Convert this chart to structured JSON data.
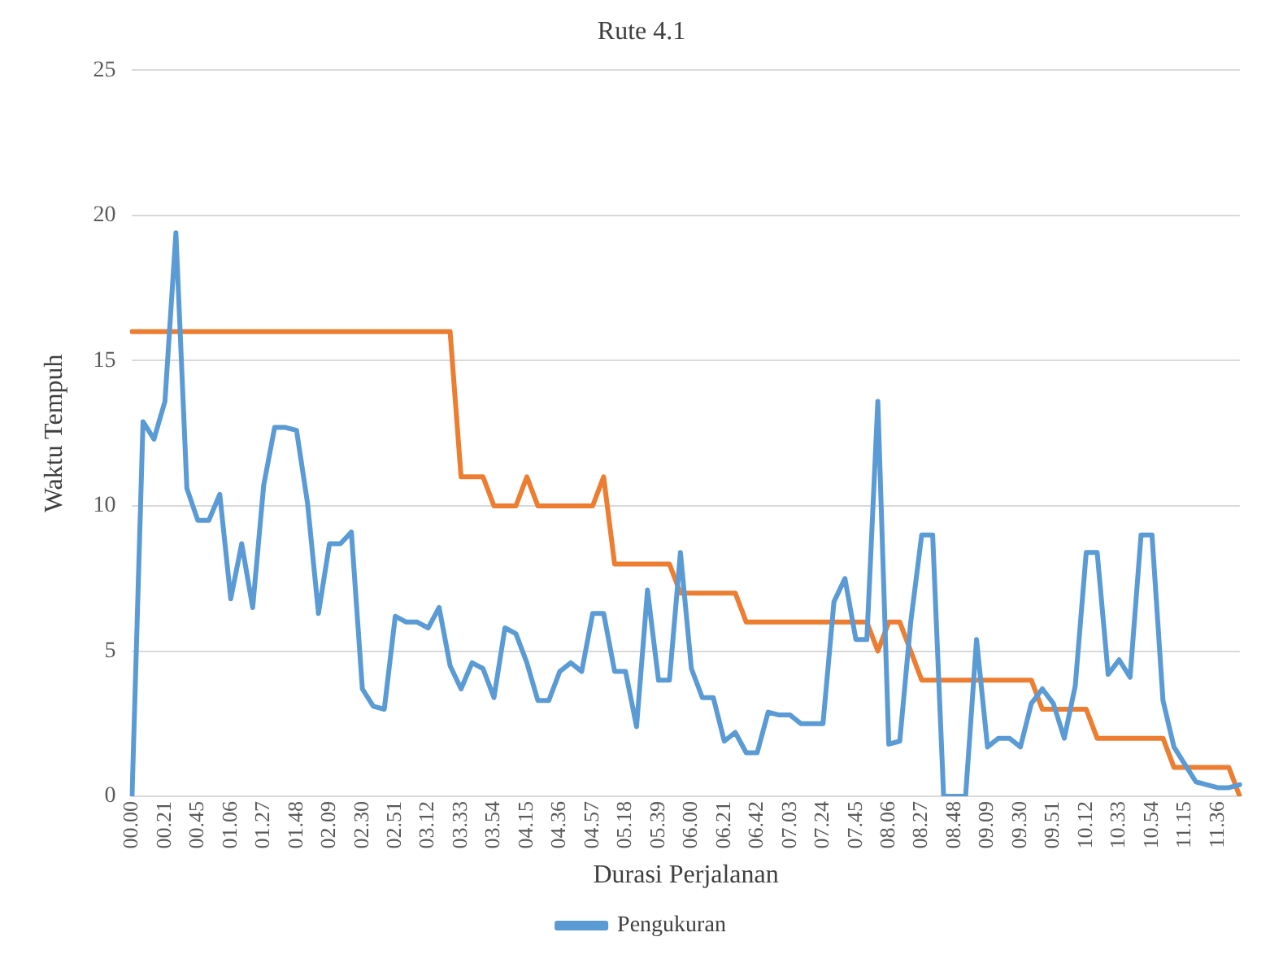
{
  "chart_data": {
    "type": "line",
    "title": "Rute 4.1",
    "xlabel": "Durasi Perjalanan",
    "ylabel": "Waktu Tempuh",
    "categories": [
      "00.00",
      null,
      null,
      "00.21",
      null,
      null,
      "00.45",
      null,
      null,
      "01.06",
      null,
      null,
      "01.27",
      null,
      null,
      "01.48",
      null,
      null,
      "02.09",
      null,
      null,
      "02.30",
      null,
      null,
      "02.51",
      null,
      null,
      "03.12",
      null,
      null,
      "03.33",
      null,
      null,
      "03.54",
      null,
      null,
      "04.15",
      null,
      null,
      "04.36",
      null,
      null,
      "04.57",
      null,
      null,
      "05.18",
      null,
      null,
      "05.39",
      null,
      null,
      "06.00",
      null,
      null,
      "06.21",
      null,
      null,
      "06.42",
      null,
      null,
      "07.03",
      null,
      null,
      "07.24",
      null,
      null,
      "07.45",
      null,
      null,
      "08.06",
      null,
      null,
      "08.27",
      null,
      null,
      "08.48",
      null,
      null,
      "09.09",
      null,
      null,
      "09.30",
      null,
      null,
      "09.51",
      null,
      null,
      "10.12",
      null,
      null,
      "10.33",
      null,
      null,
      "10.54",
      null,
      null,
      "11.15",
      null,
      null,
      "11.36",
      null,
      null
    ],
    "series": [
      {
        "name": "Pengukuran",
        "color": "#5b9bd5",
        "values": [
          0,
          12.9,
          12.3,
          13.6,
          19.4,
          10.6,
          9.5,
          9.5,
          10.4,
          6.8,
          8.7,
          6.5,
          10.7,
          12.7,
          12.7,
          12.6,
          10.1,
          6.3,
          8.7,
          8.7,
          9.1,
          3.7,
          3.1,
          3.0,
          6.2,
          6.0,
          6.0,
          5.8,
          6.5,
          4.5,
          3.7,
          4.6,
          4.4,
          3.4,
          5.8,
          5.6,
          4.6,
          3.3,
          3.3,
          4.3,
          4.6,
          4.3,
          6.3,
          6.3,
          4.3,
          4.3,
          2.4,
          7.1,
          4.0,
          4.0,
          8.4,
          4.4,
          3.4,
          3.4,
          1.9,
          2.2,
          1.5,
          1.5,
          2.9,
          2.8,
          2.8,
          2.5,
          2.5,
          2.5,
          6.7,
          7.5,
          5.4,
          5.4,
          13.6,
          1.8,
          1.9,
          6.0,
          9.0,
          9.0,
          0,
          0,
          0,
          5.4,
          1.7,
          2.0,
          2.0,
          1.7,
          3.2,
          3.7,
          3.2,
          2.0,
          3.8,
          8.4,
          8.4,
          4.2,
          4.7,
          4.1,
          9.0,
          9.0,
          3.3,
          1.7,
          1.1,
          0.5,
          0.4,
          0.3,
          0.3,
          0.4
        ]
      },
      {
        "color": "#ed7d31",
        "values": [
          16,
          16,
          16,
          16,
          16,
          16,
          16,
          16,
          16,
          16,
          16,
          16,
          16,
          16,
          16,
          16,
          16,
          16,
          16,
          16,
          16,
          16,
          16,
          16,
          16,
          16,
          16,
          16,
          16,
          16,
          11,
          11,
          11,
          10,
          10,
          10,
          11,
          10,
          10,
          10,
          10,
          10,
          10,
          11,
          8,
          8,
          8,
          8,
          8,
          8,
          7,
          7,
          7,
          7,
          7,
          7,
          6,
          6,
          6,
          6,
          6,
          6,
          6,
          6,
          6,
          6,
          6,
          6,
          5,
          6,
          6,
          5,
          4,
          4,
          4,
          4,
          4,
          4,
          4,
          4,
          4,
          4,
          4,
          3,
          3,
          3,
          3,
          3,
          2,
          2,
          2,
          2,
          2,
          2,
          2,
          1,
          1,
          1,
          1,
          1,
          1,
          0
        ]
      }
    ],
    "ylim": [
      0,
      25
    ],
    "yticks": [
      0,
      5,
      10,
      15,
      20,
      25
    ],
    "grid": "y",
    "legend": "bottom",
    "marker": "none",
    "line_style": "solid"
  }
}
